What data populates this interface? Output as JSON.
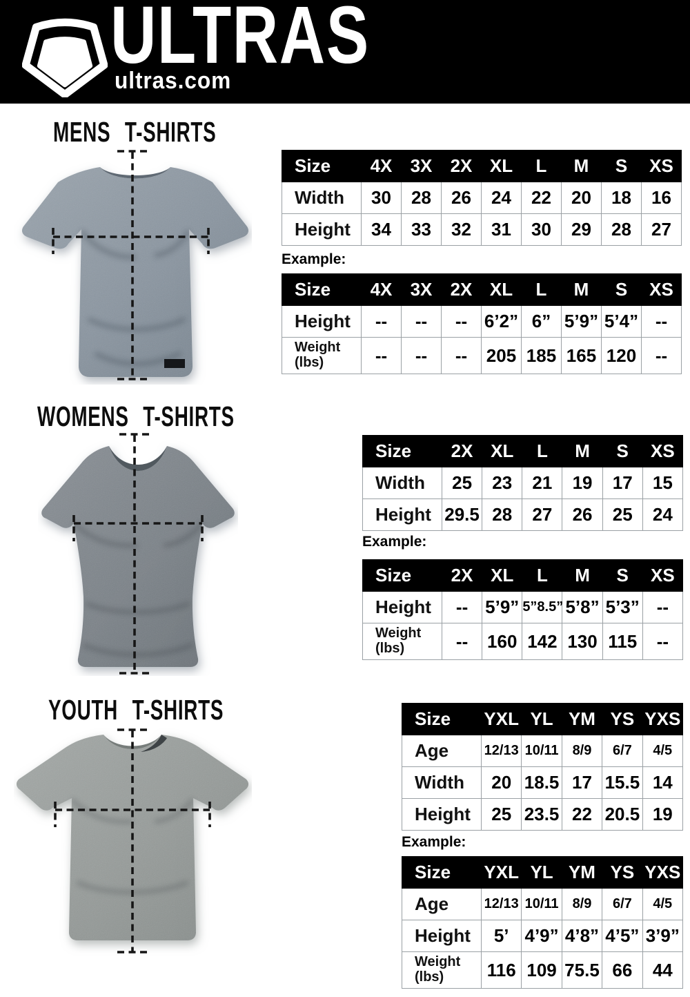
{
  "header": {
    "brand": "ULTRAS",
    "site": "ultras.com",
    "logo": "pentagon-shield-icon"
  },
  "colors": {
    "header_bg": "#000000",
    "table_header_bg": "#000000",
    "table_border": "#9aa0a4",
    "shirt_mens": "#8d98a2",
    "shirt_womens": "#7b8288",
    "shirt_youth": "#979c9a"
  },
  "sections": [
    {
      "title": "MENS T-SHIRTS",
      "example_label": "Example:",
      "size_table": {
        "columns": [
          "Size",
          "4X",
          "3X",
          "2X",
          "XL",
          "L",
          "M",
          "S",
          "XS"
        ],
        "rows": [
          {
            "label": "Width",
            "values": [
              "30",
              "28",
              "26",
              "24",
              "22",
              "20",
              "18",
              "16"
            ]
          },
          {
            "label": "Height",
            "values": [
              "34",
              "33",
              "32",
              "31",
              "30",
              "29",
              "28",
              "27"
            ]
          }
        ]
      },
      "example_table": {
        "columns": [
          "Size",
          "4X",
          "3X",
          "2X",
          "XL",
          "L",
          "M",
          "S",
          "XS"
        ],
        "rows": [
          {
            "label": "Height",
            "values": [
              "--",
              "--",
              "--",
              "6’2”",
              "6”",
              "5’9”",
              "5’4”",
              "--"
            ]
          },
          {
            "label": "Weight",
            "label2": "(lbs)",
            "values": [
              "--",
              "--",
              "--",
              "205",
              "185",
              "165",
              "120",
              "--"
            ]
          }
        ]
      }
    },
    {
      "title": "WOMENS T-SHIRTS",
      "example_label": "Example:",
      "size_table": {
        "columns": [
          "Size",
          "2X",
          "XL",
          "L",
          "M",
          "S",
          "XS"
        ],
        "rows": [
          {
            "label": "Width",
            "values": [
              "25",
              "23",
              "21",
              "19",
              "17",
              "15"
            ]
          },
          {
            "label": "Height",
            "values": [
              "29.5",
              "28",
              "27",
              "26",
              "25",
              "24"
            ]
          }
        ]
      },
      "example_table": {
        "columns": [
          "Size",
          "2X",
          "XL",
          "L",
          "M",
          "S",
          "XS"
        ],
        "rows": [
          {
            "label": "Height",
            "values": [
              "--",
              "5’9”",
              "5”8.5”",
              "5’8”",
              "5’3”",
              "--"
            ]
          },
          {
            "label": "Weight",
            "label2": "(lbs)",
            "values": [
              "--",
              "160",
              "142",
              "130",
              "115",
              "--"
            ]
          }
        ]
      }
    },
    {
      "title": "YOUTH T-SHIRTS",
      "example_label": "Example:",
      "size_table": {
        "columns": [
          "Size",
          "YXL",
          "YL",
          "YM",
          "YS",
          "YXS"
        ],
        "rows": [
          {
            "label": "Age",
            "small": true,
            "values": [
              "12/13",
              "10/11",
              "8/9",
              "6/7",
              "4/5"
            ]
          },
          {
            "label": "Width",
            "values": [
              "20",
              "18.5",
              "17",
              "15.5",
              "14"
            ]
          },
          {
            "label": "Height",
            "values": [
              "25",
              "23.5",
              "22",
              "20.5",
              "19"
            ]
          }
        ]
      },
      "example_table": {
        "columns": [
          "Size",
          "YXL",
          "YL",
          "YM",
          "YS",
          "YXS"
        ],
        "rows": [
          {
            "label": "Age",
            "small": true,
            "values": [
              "12/13",
              "10/11",
              "8/9",
              "6/7",
              "4/5"
            ]
          },
          {
            "label": "Height",
            "values": [
              "5’",
              "4’9”",
              "4’8”",
              "4’5”",
              "3’9”"
            ]
          },
          {
            "label": "Weight",
            "label2": "(lbs)",
            "values": [
              "116",
              "109",
              "75.5",
              "66",
              "44"
            ]
          }
        ]
      }
    }
  ]
}
